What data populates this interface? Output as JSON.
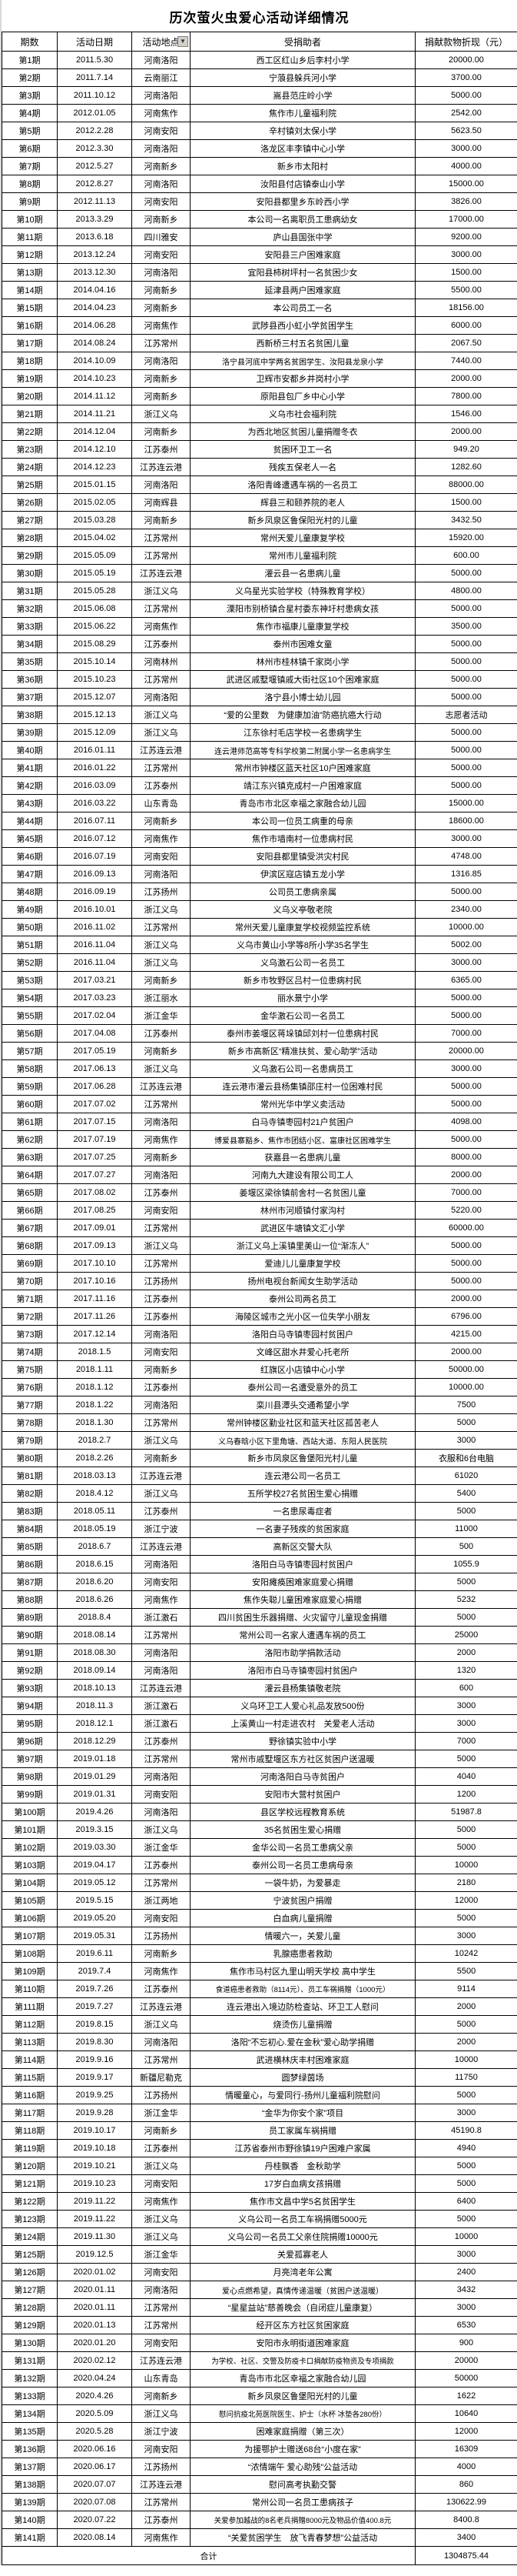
{
  "title": "历次萤火虫爱心活动详细情况",
  "table": {
    "headers": [
      "期数",
      "活动日期",
      "活动地点",
      "受捐助者",
      "捐献款物折现（元）"
    ],
    "filter_icon": "▼",
    "rows": [
      [
        "第1期",
        "2011.5.30",
        "河南洛阳",
        "西工区红山乡后李村小学",
        "20000.00"
      ],
      [
        "第2期",
        "2011.7.14",
        "云南丽江",
        "宁蒗县躲兵河小学",
        "3700.00"
      ],
      [
        "第3期",
        "2011.10.12",
        "河南洛阳",
        "嵩县范庄岭小学",
        "5000.00"
      ],
      [
        "第4期",
        "2012.01.05",
        "河南焦作",
        "焦作市儿童福利院",
        "2542.00"
      ],
      [
        "第5期",
        "2012.2.28",
        "河南安阳",
        "辛村镇刘太保小学",
        "5623.50"
      ],
      [
        "第6期",
        "2012.3.30",
        "河南洛阳",
        "洛龙区丰李镇中心小学",
        "3000.00"
      ],
      [
        "第7期",
        "2012.5.27",
        "河南新乡",
        "新乡市太阳村",
        "4000.00"
      ],
      [
        "第8期",
        "2012.8.27",
        "河南洛阳",
        "汝阳县付店镇泰山小学",
        "15000.00"
      ],
      [
        "第9期",
        "2012.11.13",
        "河南安阳",
        "安阳县都里乡东岭西小学",
        "3826.00"
      ],
      [
        "第10期",
        "2013.3.29",
        "河南新乡",
        "本公司一名离职员工患病幼女",
        "17000.00"
      ],
      [
        "第11期",
        "2013.6.18",
        "四川雅安",
        "庐山县国张中学",
        "9200.00"
      ],
      [
        "第12期",
        "2013.12.24",
        "河南安阳",
        "安阳县三户困难家庭",
        "3000.00"
      ],
      [
        "第13期",
        "2013.12.30",
        "河南洛阳",
        "宜阳县柿树坪村一名贫困少女",
        "1500.00"
      ],
      [
        "第14期",
        "2014.04.16",
        "河南新乡",
        "延津县两户困难家庭",
        "5500.00"
      ],
      [
        "第15期",
        "2014.04.23",
        "河南新乡",
        "本公司员工一名",
        "18156.00"
      ],
      [
        "第16期",
        "2014.06.28",
        "河南焦作",
        "武陟县西小虹小学贫困学生",
        "6000.00"
      ],
      [
        "第17期",
        "2014.08.24",
        "江苏常州",
        "西新桥三村五名贫困儿童",
        "2067.50"
      ],
      [
        "第18期",
        "2014.10.09",
        "河南洛阳",
        "洛宁县河底中学两名贫困学生、汝阳县龙泉小学",
        "7440.00"
      ],
      [
        "第19期",
        "2014.10.23",
        "河南新乡",
        "卫辉市安都乡井岗村小学",
        "2000.00"
      ],
      [
        "第20期",
        "2014.11.12",
        "河南新乡",
        "原阳县包厂乡中心小学",
        "7800.00"
      ],
      [
        "第21期",
        "2014.11.21",
        "浙江义乌",
        "义乌市社会福利院",
        "1546.00"
      ],
      [
        "第22期",
        "2014.12.04",
        "河南新乡",
        "为西北地区贫困儿童捐赠冬衣",
        "2000.00"
      ],
      [
        "第23期",
        "2014.12.10",
        "江苏泰州",
        "贫困环卫工一名",
        "949.20"
      ],
      [
        "第24期",
        "2014.12.23",
        "江苏连云港",
        "残疾五保老人一名",
        "1282.60"
      ],
      [
        "第25期",
        "2015.01.15",
        "河南洛阳",
        "洛阳青峰遭遇车祸的一名员工",
        "88000.00"
      ],
      [
        "第26期",
        "2015.02.05",
        "河南辉县",
        "辉县三和颐养院的老人",
        "1500.00"
      ],
      [
        "第27期",
        "2015.03.28",
        "河南新乡",
        "新乡凤泉区鲁保阳光村的儿童",
        "3432.50"
      ],
      [
        "第28期",
        "2015.04.02",
        "江苏常州",
        "常州天爱儿童康复学校",
        "15920.00"
      ],
      [
        "第29期",
        "2015.05.09",
        "江苏常州",
        "常州市儿童福利院",
        "600.00"
      ],
      [
        "第30期",
        "2015.05.19",
        "江苏连云港",
        "灌云县一名患病儿童",
        "5000.00"
      ],
      [
        "第31期",
        "2015.05.28",
        "浙江义乌",
        "义乌星光实验学校（特殊教育学校）",
        "4800.00"
      ],
      [
        "第32期",
        "2015.06.08",
        "江苏常州",
        "溧阳市别桥镇合星村委东神圩村患病女孩",
        "5000.00"
      ],
      [
        "第33期",
        "2015.06.22",
        "河南焦作",
        "焦作市福康儿童康复学校",
        "3500.00"
      ],
      [
        "第34期",
        "2015.08.29",
        "江苏泰州",
        "泰州市困难女童",
        "5000.00"
      ],
      [
        "第35期",
        "2015.10.14",
        "河南林州",
        "林州市桂林镇千家岗小学",
        "5000.00"
      ],
      [
        "第36期",
        "2015.10.23",
        "江苏常州",
        "武进区戚墅堰镇戚大街社区10个困难家庭",
        "5000.00"
      ],
      [
        "第37期",
        "2015.12.07",
        "河南洛阳",
        "洛宁县小博士幼儿园",
        "5000.00"
      ],
      [
        "第38期",
        "2015.12.13",
        "浙江义乌",
        "“爱的公里数　为健康加油”防癌抗癌大行动",
        "志愿者活动"
      ],
      [
        "第39期",
        "2015.12.09",
        "浙江义乌",
        "江东徐村毛店学校一名患病学生",
        "5000.00"
      ],
      [
        "第40期",
        "2016.01.11",
        "江苏连云港",
        "连云港师范高等专科学校第二附属小学一名患病学生",
        "5000.00"
      ],
      [
        "第41期",
        "2016.01.22",
        "江苏常州",
        "常州市钟楼区蓝天社区10户困难家庭",
        "5000.00"
      ],
      [
        "第42期",
        "2016.03.09",
        "江苏泰州",
        "靖江东兴镇克成村一户困难家庭",
        "5000.00"
      ],
      [
        "第43期",
        "2016.03.22",
        "山东青岛",
        "青岛市市北区幸福之家融合幼儿园",
        "15000.00"
      ],
      [
        "第44期",
        "2016.07.11",
        "河南新乡",
        "本公司一位员工病重的母亲",
        "18600.00"
      ],
      [
        "第45期",
        "2016.07.12",
        "河南焦作",
        "焦作市墙南村一位患病村民",
        "3000.00"
      ],
      [
        "第46期",
        "2016.07.19",
        "河南安阳",
        "安阳县都里镇受洪灾村民",
        "4748.00"
      ],
      [
        "第47期",
        "2016.09.13",
        "河南洛阳",
        "伊滨区寇店镇五龙小学",
        "1316.85"
      ],
      [
        "第48期",
        "2016.09.19",
        "江苏扬州",
        "公司员工患病亲属",
        "5000.00"
      ],
      [
        "第49期",
        "2016.10.01",
        "浙江义乌",
        "义乌义亭敬老院",
        "2340.00"
      ],
      [
        "第50期",
        "2016.11.02",
        "江苏常州",
        "常州天爱儿童康复学校视频监控系统",
        "10000.00"
      ],
      [
        "第51期",
        "2016.11.04",
        "浙江义乌",
        "义乌市黄山小学等8所小学35名学生",
        "5002.00"
      ],
      [
        "第52期",
        "2016.11.04",
        "浙江义乌",
        "义乌激石公司一名员工",
        "3000.00"
      ],
      [
        "第53期",
        "2017.03.21",
        "河南新乡",
        "新乡市牧野区吕村一位患病村民",
        "6365.00"
      ],
      [
        "第54期",
        "2017.03.23",
        "浙江丽水",
        "丽水景宁小学",
        "5000.00"
      ],
      [
        "第55期",
        "2017.02.04",
        "浙江金华",
        "金华激石公司一名员工",
        "5000.00"
      ],
      [
        "第56期",
        "2017.04.08",
        "江苏泰州",
        "泰州市姜堰区蒋垛镇邱刘村一位患病村民",
        "7000.00"
      ],
      [
        "第57期",
        "2017.05.19",
        "河南新乡",
        "新乡市高新区“精准扶贫、爱心助学”活动",
        "20000.00"
      ],
      [
        "第58期",
        "2017.06.13",
        "浙江义乌",
        "义乌激石公司一名患病员工",
        "3000.00"
      ],
      [
        "第59期",
        "2017.06.28",
        "江苏连云港",
        "连云港市灌云县杨集镇邵庄村一位困难村民",
        "5000.00"
      ],
      [
        "第60期",
        "2017.07.02",
        "江苏常州",
        "常州光华中学义卖活动",
        "5000.00"
      ],
      [
        "第61期",
        "2017.07.15",
        "河南洛阳",
        "白马寺镇枣园村21户贫困户",
        "4098.00"
      ],
      [
        "第62期",
        "2017.07.19",
        "河南焦作",
        "博爱县寨豁乡、焦作市团结小区、富康社区困难学生",
        "5000.00"
      ],
      [
        "第63期",
        "2017.07.25",
        "河南新乡",
        "获嘉县一名患病儿童",
        "8000.00"
      ],
      [
        "第64期",
        "2017.07.27",
        "河南洛阳",
        "河南九大建设有限公司工人",
        "2000.00"
      ],
      [
        "第65期",
        "2017.08.02",
        "江苏泰州",
        "姜堰区梁徐镇前舍村一名贫困儿童",
        "7000.00"
      ],
      [
        "第66期",
        "2017.08.25",
        "河南安阳",
        "林州市河顺镇付家沟村",
        "5220.00"
      ],
      [
        "第67期",
        "2017.09.01",
        "江苏常州",
        "武进区牛塘镇文汇小学",
        "60000.00"
      ],
      [
        "第68期",
        "2017.09.13",
        "浙江义乌",
        "浙江义乌上溪镇里美山一位“渐冻人”",
        "5000.00"
      ],
      [
        "第69期",
        "2017.10.10",
        "江苏常州",
        "爱迪儿儿童康复学校",
        "5000.00"
      ],
      [
        "第70期",
        "2017.10.16",
        "江苏扬州",
        "扬州电视台新闻女生助学活动",
        "5000.00"
      ],
      [
        "第71期",
        "2017.11.16",
        "江苏泰州",
        "泰州公司两名员工",
        "2000.00"
      ],
      [
        "第72期",
        "2017.11.26",
        "江苏泰州",
        "海陵区城市之光小区一位失学小朋友",
        "6796.00"
      ],
      [
        "第73期",
        "2017.12.14",
        "河南洛阳",
        "洛阳白马寺镇枣园村贫困户",
        "4215.00"
      ],
      [
        "第74期",
        "2018.1.5",
        "河南安阳",
        "文峰区甜水井爱心托老所",
        "2000.00"
      ],
      [
        "第75期",
        "2018.1.11",
        "河南新乡",
        "红旗区小店镇中心小学",
        "50000.00"
      ],
      [
        "第76期",
        "2018.1.12",
        "江苏泰州",
        "泰州公司一名遭受意外的员工",
        "10000.00"
      ],
      [
        "第77期",
        "2018.1.22",
        "河南洛阳",
        "栾川县潭头交通希望小学",
        "7500"
      ],
      [
        "第78期",
        "2018.1.30",
        "江苏常州",
        "常州钟楼区勤业社区和蓝天社区孤苦老人",
        "5000"
      ],
      [
        "第79期",
        "2018.2.7",
        "浙江义乌",
        "义乌春晗小区下里角塘、西站大道、东阳人民医院",
        "3000"
      ],
      [
        "第80期",
        "2018.2.26",
        "河南新乡",
        "新乡市凤泉区鲁堡阳光村儿童",
        "衣服和6台电脑"
      ],
      [
        "第81期",
        "2018.03.13",
        "江苏连云港",
        "连云港公司一名员工",
        "61020"
      ],
      [
        "第82期",
        "2018.4.12",
        "浙江义乌",
        "五所学校27名贫困生爱心捐赠",
        "5400"
      ],
      [
        "第83期",
        "2018.05.11",
        "江苏泰州",
        "一名患尿毒症者",
        "5000"
      ],
      [
        "第84期",
        "2018.05.19",
        "浙江宁波",
        "一名妻子残疾的贫困家庭",
        "11000"
      ],
      [
        "第85期",
        "2018.6.7",
        "江苏连云港",
        "高新区交警大队",
        "500"
      ],
      [
        "第86期",
        "2018.6.15",
        "河南洛阳",
        "洛阳白马寺镇枣园村贫困户",
        "1055.9"
      ],
      [
        "第87期",
        "2018.6.20",
        "河南安阳",
        "安阳瘫痪困难家庭爱心捐赠",
        "5000"
      ],
      [
        "第88期",
        "2018.6.26",
        "河南焦作",
        "焦作失聪儿童困难家庭爱心捐赠",
        "5232"
      ],
      [
        "第89期",
        "2018.8.4",
        "浙江激石",
        "四川贫困生乐器捐赠、火灾留守儿童现金捐赠",
        "5000"
      ],
      [
        "第90期",
        "2018.08.14",
        "江苏常州",
        "常州公司一名家人遭遇车祸的员工",
        "25000"
      ],
      [
        "第91期",
        "2018.08.30",
        "河南洛阳",
        "洛阳市助学捐款活动",
        "2000"
      ],
      [
        "第92期",
        "2018.09.14",
        "河南洛阳",
        "洛阳市白马寺镇枣园村贫困户",
        "1320"
      ],
      [
        "第93期",
        "2018.10.13",
        "江苏连云港",
        "灌云县杨集镇敬老院",
        "600"
      ],
      [
        "第94期",
        "2018.11.3",
        "浙江激石",
        "义乌环卫工人爱心礼品发放500份",
        "3000"
      ],
      [
        "第95期",
        "2018.12.1",
        "浙江激石",
        "上溪黄山一村走进农村　关爱老人活动",
        "3000"
      ],
      [
        "第96期",
        "2018.12.29",
        "江苏泰州",
        "野徐镇实验中小学",
        "7000"
      ],
      [
        "第97期",
        "2019.01.18",
        "江苏常州",
        "常州市戚墅堰区东方社区贫困户送温暖",
        "5000"
      ],
      [
        "第98期",
        "2019.01.29",
        "河南洛阳",
        "河南洛阳白马寺贫困户",
        "4040"
      ],
      [
        "第99期",
        "2019.01.31",
        "河南安阳",
        "安阳市大营村贫困户",
        "1200"
      ],
      [
        "第100期",
        "2019.4.26",
        "河南洛阳",
        "县区学校远程教育系统",
        "51987.8"
      ],
      [
        "第101期",
        "2019.3.15",
        "浙江义乌",
        "35名贫困生爱心捐赠",
        "5000"
      ],
      [
        "第102期",
        "2019.03.30",
        "浙江金华",
        "金华公司一名员工患病父亲",
        "5000"
      ],
      [
        "第103期",
        "2019.04.17",
        "江苏泰州",
        "泰州公司一名员工患病母亲",
        "10000"
      ],
      [
        "第104期",
        "2019.05.12",
        "江苏常州",
        "一袋牛奶，为爱暴走",
        "2180"
      ],
      [
        "第105期",
        "2019.5.15",
        "浙江两地",
        "宁波贫困户捐赠",
        "12000"
      ],
      [
        "第106期",
        "2019.05.20",
        "河南安阳",
        "白血病儿童捐赠",
        "5000"
      ],
      [
        "第107期",
        "2019.05.31",
        "江苏扬州",
        "情暖六一，关爱儿童",
        "3000"
      ],
      [
        "第108期",
        "2019.6.11",
        "河南新乡",
        "乳腺癌患者救助",
        "10242"
      ],
      [
        "第109期",
        "2019.7.4",
        "河南焦作",
        "焦作市马村区九里山明天学校 高中学生",
        "5500"
      ],
      [
        "第110期",
        "2019.7.26",
        "江苏泰州",
        "食道癌患者救助（8114元）、员工车祸捐赠（1000元）",
        "9114"
      ],
      [
        "第111期",
        "2019.7.27",
        "江苏连云港",
        "连云港出入境边防检查站、环卫工人慰问",
        "2000"
      ],
      [
        "第112期",
        "2019.8.15",
        "浙江义乌",
        "烧烫伤儿童捐赠",
        "5000"
      ],
      [
        "第113期",
        "2019.8.30",
        "河南洛阳",
        "洛阳“不忘初心.爱在金秋”爱心助学捐赠",
        "2000"
      ],
      [
        "第114期",
        "2019.9.16",
        "江苏常州",
        "武进横林庆丰村困难家庭",
        "10000"
      ],
      [
        "第115期",
        "2019.9.17",
        "新疆尼勒克",
        "圆梦绿茵场",
        "11750"
      ],
      [
        "第116期",
        "2019.9.25",
        "江苏扬州",
        "情暖童心，与爱同行-扬州儿童福利院慰问",
        "5000"
      ],
      [
        "第117期",
        "2019.9.28",
        "浙江金华",
        "“金华为你安个家”项目",
        "3000"
      ],
      [
        "第118期",
        "2019.10.17",
        "河南新乡",
        "员工家属车祸捐赠",
        "45190.8"
      ],
      [
        "第119期",
        "2019.10.18",
        "江苏泰州",
        "江苏省泰州市野徐镇19户困难户家属",
        "4940"
      ],
      [
        "第120期",
        "2019.10.21",
        "浙江义乌",
        "丹桂飘香　金秋助学",
        "5000"
      ],
      [
        "第121期",
        "2019.10.23",
        "河南安阳",
        "17岁白血病女孩捐赠",
        "5000"
      ],
      [
        "第122期",
        "2019.11.22",
        "河南焦作",
        "焦作市文昌中学5名贫困学生",
        "6400"
      ],
      [
        "第123期",
        "2019.11.22",
        "浙江义乌",
        "义乌公司一名员工车祸捐赠5000元",
        "5000"
      ],
      [
        "第124期",
        "2019.11.30",
        "浙江义乌",
        "义乌公司一名员工父亲住院捐赠10000元",
        "10000"
      ],
      [
        "第125期",
        "2019.12.5",
        "浙江金华",
        "关爱孤寡老人",
        "3000"
      ],
      [
        "第126期",
        "2020.01.02",
        "河南安阳",
        "月亮湾老年公寓",
        "2400"
      ],
      [
        "第127期",
        "2020.01.11",
        "河南洛阳",
        "爱心点燃希望，真情传递温暖（贫困户送温暖）",
        "3432"
      ],
      [
        "第128期",
        "2020.01.11",
        "江苏常州",
        "“星星益站”慈善晚会（自闭症儿童康复）",
        "3000"
      ],
      [
        "第129期",
        "2020.01.13",
        "江苏常州",
        "经开区东方社区贫困家庭",
        "6530"
      ],
      [
        "第130期",
        "2020.01.20",
        "河南安阳",
        "安阳市永明街道困难家庭",
        "900"
      ],
      [
        "第131期",
        "2020.02.12",
        "江苏连云港",
        "为学校、社区、交警及防疫卡口捐献防疫物资及专项捐款",
        "20000"
      ],
      [
        "第132期",
        "2020.04.24",
        "山东青岛",
        "青岛市市北区幸福之家融合幼儿园",
        "50000"
      ],
      [
        "第133期",
        "2020.4.26",
        "河南新乡",
        "新乡凤泉区鲁堡阳光村的儿童",
        "1622"
      ],
      [
        "第134期",
        "2020.5.09",
        "浙江义乌",
        "慰问抗疫北苑医院医生、护士（水杯 冰垫各280份）",
        "10640"
      ],
      [
        "第135期",
        "2020.5.28",
        "浙江宁波",
        "困难家庭捐赠（第三次）",
        "12000"
      ],
      [
        "第136期",
        "2020.06.16",
        "河南安阳",
        "为援鄂护士赠送68台“小度在家”",
        "16309"
      ],
      [
        "第137期",
        "2020.06.17",
        "江苏扬州",
        "“浓情端午 爱心助残”公益活动",
        "4000"
      ],
      [
        "第138期",
        "2020.07.07",
        "江苏连云港",
        "慰问高考执勤交警",
        "860"
      ],
      [
        "第139期",
        "2020.07.08",
        "江苏常州",
        "常州公司一名员工患病孩子",
        "130622.99"
      ],
      [
        "第140期",
        "2020.07.22",
        "江苏泰州",
        "关爱参加越战的8名老兵捐赠8000元及物品价值400.8元",
        "8400.8"
      ],
      [
        "第141期",
        "2020.08.14",
        "河南焦作",
        "“关爱贫困学生　放飞青春梦想”公益活动",
        "3400"
      ]
    ],
    "total_label": "合计",
    "total_value": "1304875.44"
  }
}
